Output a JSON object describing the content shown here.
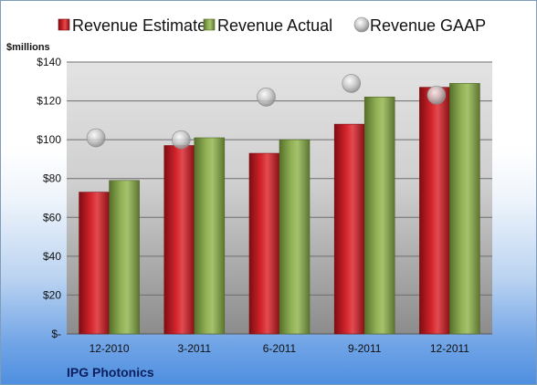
{
  "company": "IPG Photonics",
  "chart_data": {
    "type": "bar",
    "title": "",
    "ylabel": "$millions",
    "xlabel": "",
    "categories": [
      "12-2010",
      "3-2011",
      "6-2011",
      "9-2011",
      "12-2011"
    ],
    "series": [
      {
        "name": "Revenue Estimate",
        "kind": "bar",
        "color": "#c8202a",
        "values": [
          73,
          97,
          93,
          108,
          127
        ]
      },
      {
        "name": "Revenue Actual",
        "kind": "bar",
        "color": "#8aa84e",
        "values": [
          79,
          101,
          100,
          122,
          129
        ]
      },
      {
        "name": "Revenue GAAP",
        "kind": "point",
        "color": "#b8b8b8",
        "values": [
          101,
          100,
          122,
          129,
          123
        ]
      }
    ],
    "ylim": [
      0,
      140
    ],
    "yticks": [
      0,
      20,
      40,
      60,
      80,
      100,
      120,
      140
    ],
    "ytick_labels": [
      "$-",
      "$20",
      "$40",
      "$60",
      "$80",
      "$100",
      "$120",
      "$140"
    ],
    "grid": true,
    "legend_position": "top"
  }
}
